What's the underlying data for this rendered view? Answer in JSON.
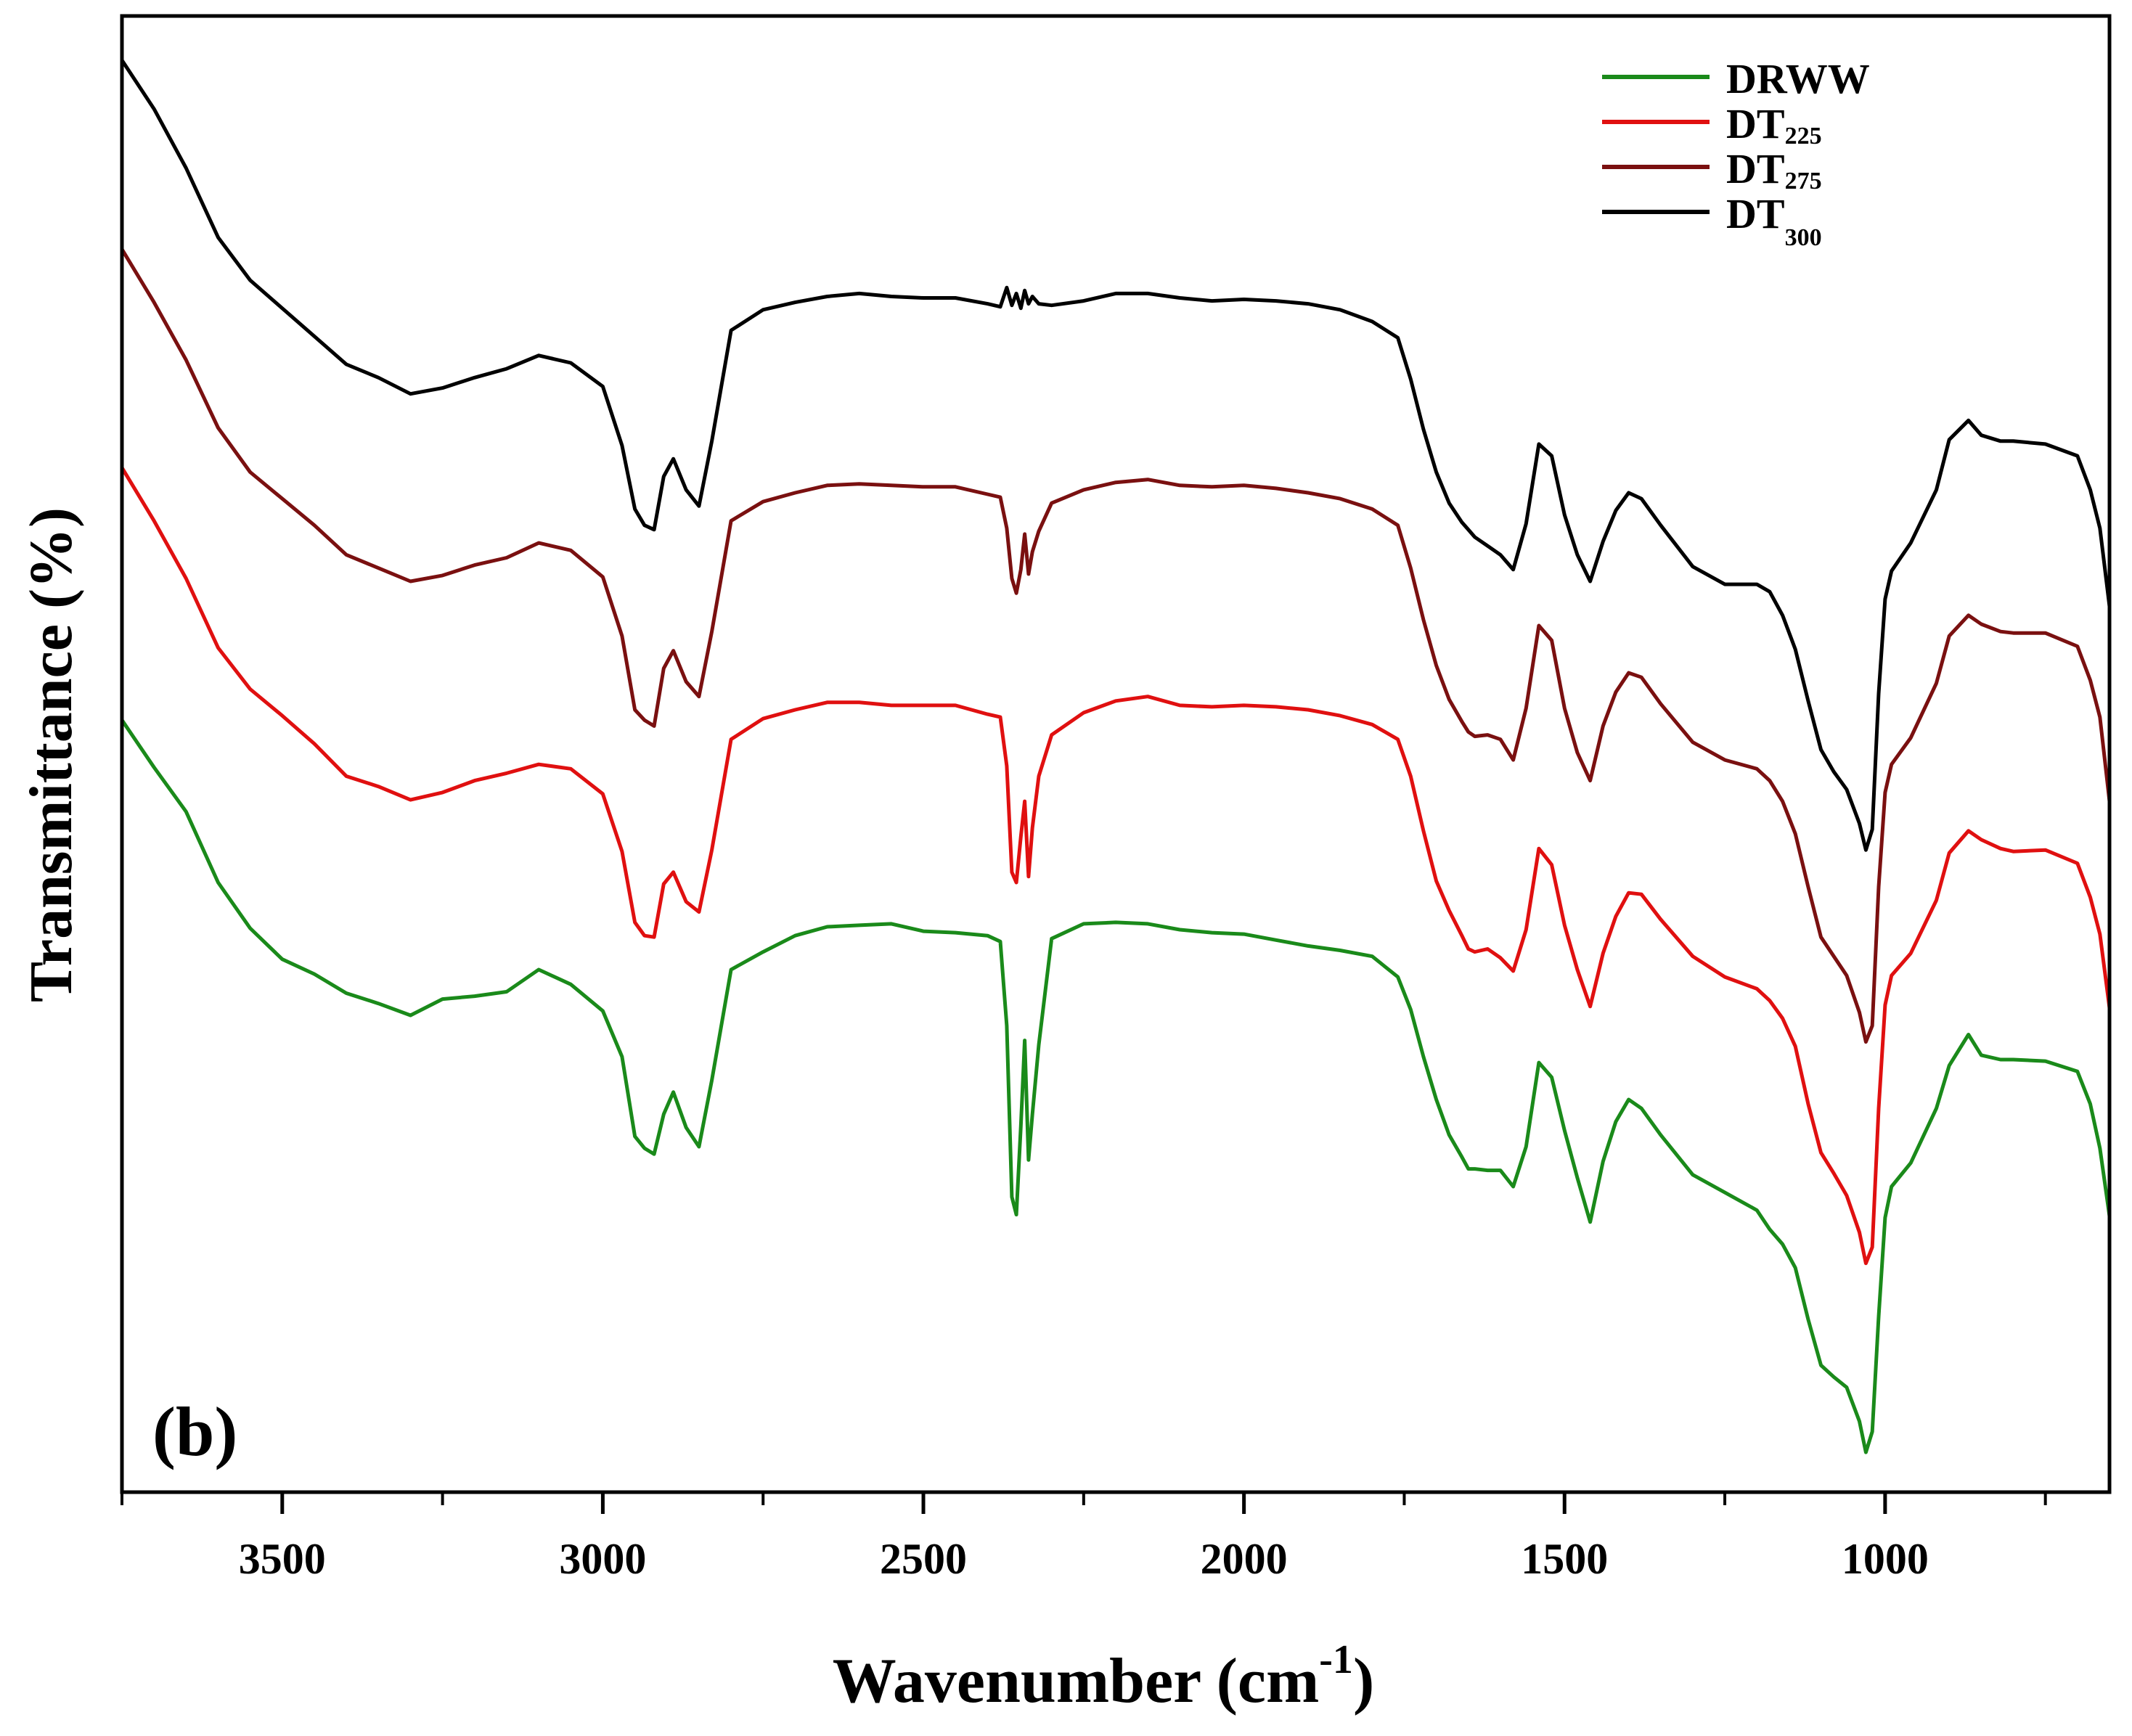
{
  "chart_data": {
    "type": "line",
    "panel_label": "(b)",
    "xlabel": "Wavenumber (cm",
    "xlabel_sup": "-1",
    "xlabel_close": ")",
    "ylabel": "Transmittance (%)",
    "xlim": [
      3750,
      650
    ],
    "ylim": [
      0,
      100
    ],
    "x_ticks": [
      3500,
      3000,
      2500,
      2000,
      1500,
      1000
    ],
    "x_tick_labels": [
      "3500",
      "3000",
      "2500",
      "2000",
      "1500",
      "1000"
    ],
    "y_ticks_labeled": false,
    "legend_position": "top-right",
    "series": [
      {
        "name": "DRWW",
        "label_main": "DRWW",
        "label_sub": "",
        "color": "#1a8a1a",
        "x": [
          3750,
          3700,
          3650,
          3600,
          3550,
          3500,
          3450,
          3400,
          3350,
          3300,
          3250,
          3200,
          3150,
          3100,
          3050,
          3000,
          2970,
          2950,
          2935,
          2920,
          2905,
          2890,
          2870,
          2850,
          2830,
          2800,
          2750,
          2700,
          2650,
          2600,
          2550,
          2500,
          2450,
          2400,
          2380,
          2370,
          2362,
          2355,
          2348,
          2342,
          2336,
          2330,
          2320,
          2300,
          2250,
          2200,
          2150,
          2100,
          2050,
          2000,
          1950,
          1900,
          1850,
          1800,
          1760,
          1740,
          1720,
          1700,
          1680,
          1660,
          1650,
          1640,
          1620,
          1600,
          1580,
          1560,
          1540,
          1520,
          1500,
          1480,
          1460,
          1440,
          1420,
          1400,
          1380,
          1350,
          1300,
          1250,
          1200,
          1180,
          1160,
          1140,
          1120,
          1100,
          1080,
          1060,
          1040,
          1030,
          1020,
          1010,
          1000,
          990,
          960,
          920,
          900,
          870,
          850,
          820,
          800,
          750,
          700,
          680,
          665,
          650
        ],
        "y": [
          52.3,
          49.1,
          46.1,
          41.3,
          38.2,
          36.1,
          35.1,
          33.8,
          33.1,
          32.3,
          33.4,
          33.6,
          33.9,
          35.4,
          34.4,
          32.6,
          29.5,
          24.1,
          23.3,
          22.9,
          25.6,
          27.1,
          24.7,
          23.4,
          27.9,
          35.4,
          36.6,
          37.7,
          38.3,
          38.4,
          38.5,
          38.0,
          37.9,
          37.7,
          37.3,
          31.6,
          20.0,
          18.8,
          24.8,
          30.6,
          22.5,
          25.6,
          30.3,
          37.5,
          38.5,
          38.6,
          38.5,
          38.1,
          37.9,
          37.8,
          37.4,
          37.0,
          36.7,
          36.3,
          34.9,
          32.7,
          29.5,
          26.6,
          24.2,
          22.7,
          21.9,
          21.9,
          21.8,
          21.8,
          20.7,
          23.4,
          29.1,
          28.1,
          24.5,
          21.3,
          18.3,
          22.4,
          25.1,
          26.6,
          26.0,
          24.2,
          21.5,
          20.3,
          19.1,
          17.8,
          16.8,
          15.2,
          11.7,
          8.6,
          7.8,
          7.1,
          4.8,
          2.7,
          4.1,
          11.9,
          18.6,
          20.7,
          22.3,
          26.0,
          28.9,
          31.0,
          29.6,
          29.3,
          29.3,
          29.2,
          28.5,
          26.3,
          23.3,
          18.7
        ]
      },
      {
        "name": "DT225",
        "label_main": "DT",
        "label_sub": "225",
        "color": "#e01010",
        "x": [
          3750,
          3700,
          3650,
          3600,
          3550,
          3500,
          3450,
          3400,
          3350,
          3300,
          3250,
          3200,
          3150,
          3100,
          3050,
          3000,
          2970,
          2950,
          2935,
          2920,
          2905,
          2890,
          2870,
          2850,
          2830,
          2800,
          2750,
          2700,
          2650,
          2600,
          2550,
          2500,
          2450,
          2400,
          2380,
          2370,
          2362,
          2355,
          2348,
          2342,
          2336,
          2330,
          2320,
          2300,
          2250,
          2200,
          2150,
          2100,
          2050,
          2000,
          1950,
          1900,
          1850,
          1800,
          1760,
          1740,
          1720,
          1700,
          1680,
          1660,
          1650,
          1640,
          1620,
          1600,
          1580,
          1560,
          1540,
          1520,
          1500,
          1480,
          1460,
          1440,
          1420,
          1400,
          1380,
          1350,
          1300,
          1250,
          1200,
          1180,
          1160,
          1140,
          1120,
          1100,
          1080,
          1060,
          1040,
          1030,
          1020,
          1010,
          1000,
          990,
          960,
          920,
          900,
          870,
          850,
          820,
          800,
          750,
          700,
          680,
          665,
          650
        ],
        "y": [
          69.4,
          65.8,
          61.9,
          57.2,
          54.4,
          52.6,
          50.7,
          48.5,
          47.8,
          46.9,
          47.4,
          48.2,
          48.7,
          49.3,
          49.0,
          47.3,
          43.4,
          38.6,
          37.7,
          37.6,
          41.2,
          42.0,
          40.0,
          39.3,
          43.5,
          51.0,
          52.4,
          53.0,
          53.5,
          53.5,
          53.3,
          53.3,
          53.3,
          52.7,
          52.5,
          49.2,
          42.0,
          41.3,
          44.4,
          46.8,
          41.7,
          45.0,
          48.5,
          51.3,
          52.8,
          53.6,
          53.9,
          53.3,
          53.2,
          53.3,
          53.2,
          53.0,
          52.6,
          52.0,
          51.0,
          48.5,
          44.8,
          41.4,
          39.4,
          37.7,
          36.8,
          36.6,
          36.8,
          36.2,
          35.3,
          38.1,
          43.6,
          42.5,
          38.4,
          35.4,
          32.9,
          36.5,
          39.0,
          40.6,
          40.5,
          38.8,
          36.3,
          34.9,
          34.1,
          33.3,
          32.1,
          30.2,
          26.3,
          23.0,
          21.6,
          20.1,
          17.6,
          15.5,
          16.6,
          26.0,
          33.0,
          35.0,
          36.5,
          40.1,
          43.3,
          44.8,
          44.2,
          43.6,
          43.4,
          43.5,
          42.6,
          40.3,
          37.8,
          32.8
        ]
      },
      {
        "name": "DT275",
        "label_main": "DT",
        "label_sub": "275",
        "color": "#7a1010",
        "x": [
          3750,
          3700,
          3650,
          3600,
          3550,
          3500,
          3450,
          3400,
          3350,
          3300,
          3250,
          3200,
          3150,
          3100,
          3050,
          3000,
          2970,
          2950,
          2935,
          2920,
          2905,
          2890,
          2870,
          2850,
          2830,
          2800,
          2750,
          2700,
          2650,
          2600,
          2550,
          2500,
          2450,
          2400,
          2380,
          2370,
          2362,
          2355,
          2348,
          2342,
          2336,
          2330,
          2320,
          2300,
          2250,
          2200,
          2150,
          2100,
          2050,
          2000,
          1950,
          1900,
          1850,
          1800,
          1760,
          1740,
          1720,
          1700,
          1680,
          1660,
          1650,
          1640,
          1620,
          1600,
          1580,
          1560,
          1540,
          1520,
          1500,
          1480,
          1460,
          1440,
          1420,
          1400,
          1380,
          1350,
          1300,
          1250,
          1200,
          1180,
          1160,
          1140,
          1120,
          1100,
          1080,
          1060,
          1040,
          1030,
          1020,
          1010,
          1000,
          990,
          960,
          920,
          900,
          870,
          850,
          820,
          800,
          750,
          700,
          680,
          665,
          650
        ],
        "y": [
          84.2,
          80.6,
          76.7,
          72.1,
          69.1,
          67.3,
          65.5,
          63.5,
          62.6,
          61.7,
          62.1,
          62.8,
          63.3,
          64.3,
          63.8,
          62.0,
          58.0,
          53.0,
          52.3,
          51.9,
          55.8,
          57.0,
          54.9,
          53.9,
          58.3,
          65.8,
          67.1,
          67.7,
          68.2,
          68.3,
          68.2,
          68.1,
          68.1,
          67.6,
          67.4,
          65.3,
          61.9,
          60.9,
          62.5,
          64.9,
          62.2,
          63.7,
          65.1,
          67.0,
          67.9,
          68.4,
          68.6,
          68.2,
          68.1,
          68.2,
          68.0,
          67.7,
          67.3,
          66.6,
          65.5,
          62.6,
          59.1,
          56.0,
          53.7,
          52.2,
          51.5,
          51.2,
          51.3,
          51.0,
          49.6,
          53.1,
          58.7,
          57.7,
          53.1,
          50.1,
          48.2,
          51.9,
          54.2,
          55.5,
          55.2,
          53.4,
          50.8,
          49.6,
          49.0,
          48.2,
          46.8,
          44.6,
          41.0,
          37.6,
          36.3,
          35.0,
          32.5,
          30.5,
          31.6,
          41.0,
          47.4,
          49.3,
          51.1,
          54.8,
          58.0,
          59.4,
          58.8,
          58.3,
          58.2,
          58.2,
          57.3,
          55.0,
          52.5,
          46.8
        ]
      },
      {
        "name": "DT300",
        "label_main": "DT",
        "label_sub": "300",
        "color": "#000000",
        "x": [
          3750,
          3700,
          3650,
          3600,
          3550,
          3500,
          3450,
          3400,
          3350,
          3300,
          3250,
          3200,
          3150,
          3100,
          3050,
          3000,
          2970,
          2950,
          2935,
          2920,
          2905,
          2890,
          2870,
          2850,
          2830,
          2800,
          2750,
          2700,
          2650,
          2600,
          2550,
          2500,
          2450,
          2400,
          2380,
          2370,
          2362,
          2355,
          2348,
          2342,
          2336,
          2330,
          2320,
          2300,
          2250,
          2200,
          2150,
          2100,
          2050,
          2000,
          1950,
          1900,
          1850,
          1800,
          1760,
          1740,
          1720,
          1700,
          1680,
          1660,
          1650,
          1640,
          1620,
          1600,
          1580,
          1560,
          1540,
          1520,
          1500,
          1480,
          1460,
          1440,
          1420,
          1400,
          1380,
          1350,
          1300,
          1250,
          1200,
          1180,
          1160,
          1140,
          1120,
          1100,
          1080,
          1060,
          1040,
          1030,
          1020,
          1010,
          1000,
          990,
          960,
          920,
          900,
          870,
          850,
          820,
          800,
          750,
          700,
          680,
          665,
          650
        ],
        "y": [
          97.0,
          93.7,
          89.7,
          85.0,
          82.1,
          80.2,
          78.3,
          76.4,
          75.5,
          74.4,
          74.8,
          75.5,
          76.1,
          77.0,
          76.5,
          74.9,
          70.9,
          66.6,
          65.5,
          65.2,
          68.8,
          70.0,
          67.9,
          66.8,
          71.2,
          78.7,
          80.1,
          80.6,
          81.0,
          81.2,
          81.0,
          80.9,
          80.9,
          80.5,
          80.3,
          81.6,
          80.4,
          81.2,
          80.2,
          81.4,
          80.5,
          81.0,
          80.5,
          80.4,
          80.7,
          81.2,
          81.2,
          80.9,
          80.7,
          80.8,
          80.7,
          80.5,
          80.1,
          79.3,
          78.2,
          75.4,
          72.0,
          69.1,
          67.0,
          65.7,
          65.2,
          64.7,
          64.1,
          63.5,
          62.5,
          65.6,
          71.0,
          70.2,
          66.2,
          63.5,
          61.7,
          64.4,
          66.5,
          67.7,
          67.3,
          65.5,
          62.7,
          61.5,
          61.5,
          61.0,
          59.4,
          57.1,
          53.6,
          50.3,
          48.8,
          47.6,
          45.3,
          43.5,
          44.9,
          54.1,
          60.5,
          62.4,
          64.3,
          67.9,
          71.3,
          72.6,
          71.6,
          71.2,
          71.2,
          71.0,
          70.2,
          67.9,
          65.3,
          60.0
        ]
      }
    ]
  }
}
